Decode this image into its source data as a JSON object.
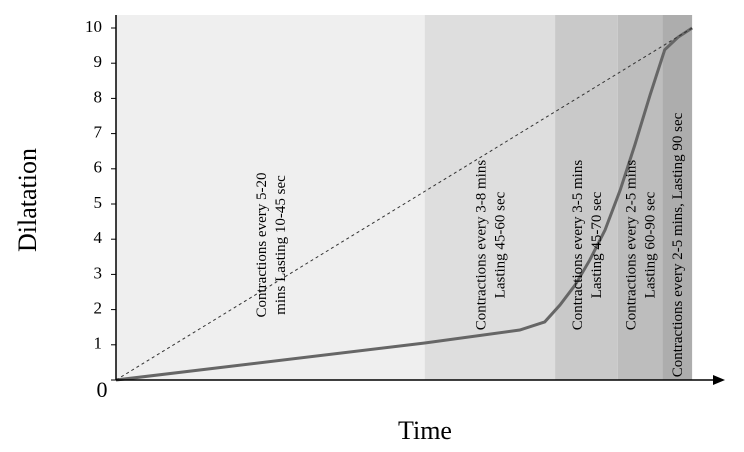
{
  "chart_data": {
    "type": "line",
    "ylabel": "Dilatation",
    "xlabel": "Time",
    "xlim": [
      0,
      100
    ],
    "ylim": [
      0,
      10
    ],
    "yticks": [
      0,
      1,
      2,
      3,
      4,
      5,
      6,
      7,
      8,
      9,
      10
    ],
    "phases": [
      {
        "start": 0,
        "end": 50.7,
        "color": "#efefef",
        "label": [
          "Contractions every 5-20",
          "mins Lasting 10-45 sec"
        ]
      },
      {
        "start": 50.7,
        "end": 72.1,
        "color": "#dedede",
        "label": [
          "Contractions every 3-8 mins",
          "Lasting 45-60 sec"
        ]
      },
      {
        "start": 72.1,
        "end": 82.4,
        "color": "#c9c9c9",
        "label": [
          "Contractions every 3-5 mins",
          "Lasting 45-70 sec"
        ]
      },
      {
        "start": 82.4,
        "end": 89.7,
        "color": "#bdbdbd",
        "label": [
          "Contractions every 2-5 mins",
          "Lasting 60-90 sec"
        ]
      },
      {
        "start": 89.7,
        "end": 94.6,
        "color": "#adadad",
        "label": [
          "Contractions every 2-5 mins, Lasting 90 sec"
        ]
      }
    ],
    "series": [
      {
        "color": "#666666",
        "style": "solid",
        "x": [
          0,
          50.7,
          66.3,
          70.4,
          72.9,
          75.4,
          77.8,
          80.3,
          82.8,
          85.2,
          87.7,
          90.1,
          92.3,
          94.6
        ],
        "values": [
          0,
          1.05,
          1.42,
          1.65,
          2.13,
          2.7,
          3.41,
          4.26,
          5.4,
          6.68,
          8.1,
          9.38,
          9.74,
          10
        ]
      },
      {
        "color": "#333333",
        "style": "dashed",
        "x": [
          0,
          94.6
        ],
        "values": [
          0,
          10
        ]
      }
    ]
  }
}
